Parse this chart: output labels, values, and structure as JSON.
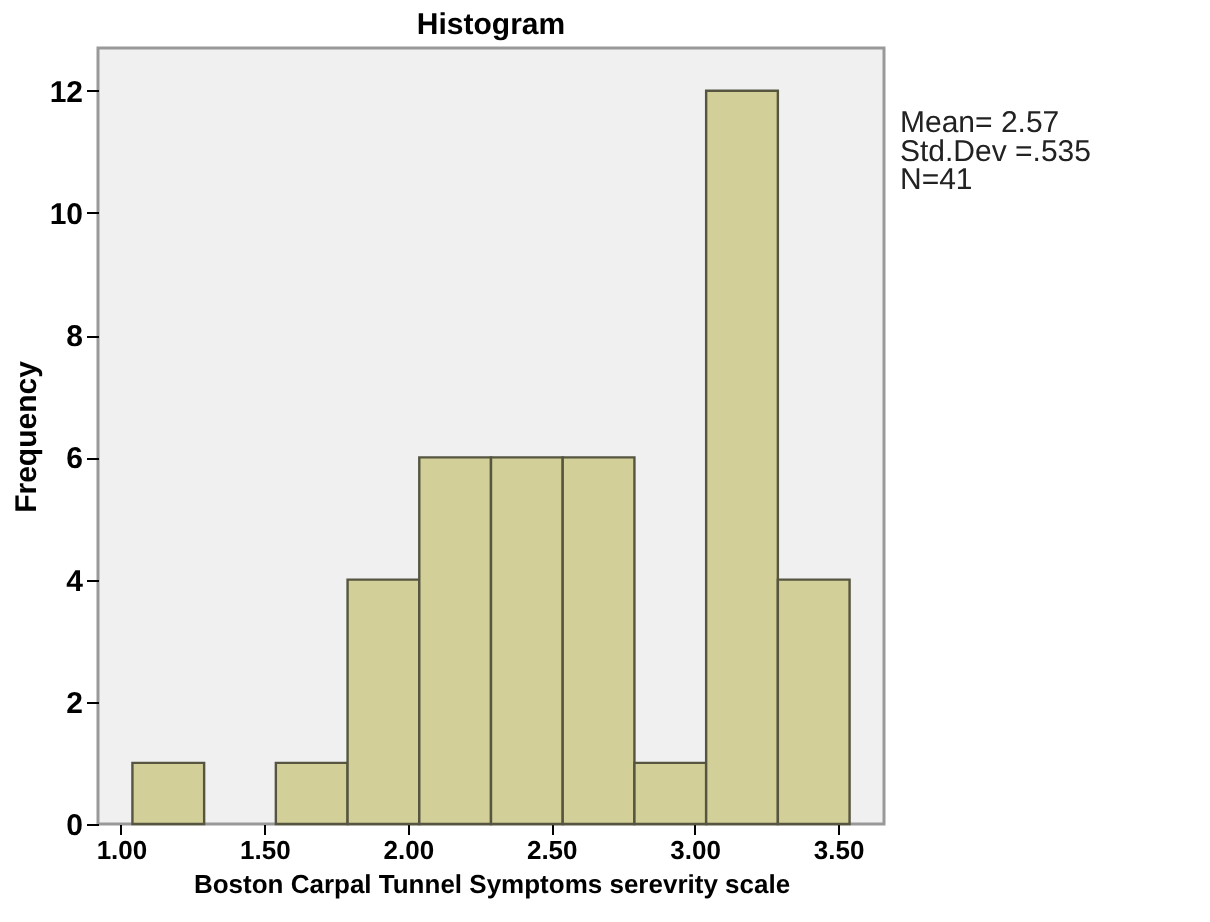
{
  "chart_data": {
    "type": "histogram",
    "title": "Histogram",
    "xlabel": "Boston Carpal Tunnel Symptoms serevrity scale",
    "ylabel": "Frequency",
    "bins": [
      1.04,
      1.29,
      1.54,
      1.79,
      2.04,
      2.29,
      2.54,
      2.79,
      3.04,
      3.29,
      3.54
    ],
    "values": [
      1,
      0,
      1,
      4,
      6,
      6,
      6,
      1,
      12,
      4
    ],
    "color": "#d3cf98",
    "xlim": [
      0.92,
      3.66
    ],
    "ylim": [
      0,
      12.7
    ],
    "xticks": [
      {
        "value": 1,
        "label": "1.00"
      },
      {
        "value": 1.5,
        "label": "1.50"
      },
      {
        "value": 2,
        "label": "2.00"
      },
      {
        "value": 2.5,
        "label": "2.50"
      },
      {
        "value": 3,
        "label": "3.00"
      },
      {
        "value": 3.5,
        "label": "3.50"
      }
    ],
    "yticks": [
      0,
      2,
      4,
      6,
      8,
      10,
      12
    ],
    "grid": false,
    "annotations": [
      "Mean= 2.57",
      "Std.Dev =.535",
      "N=41"
    ]
  }
}
